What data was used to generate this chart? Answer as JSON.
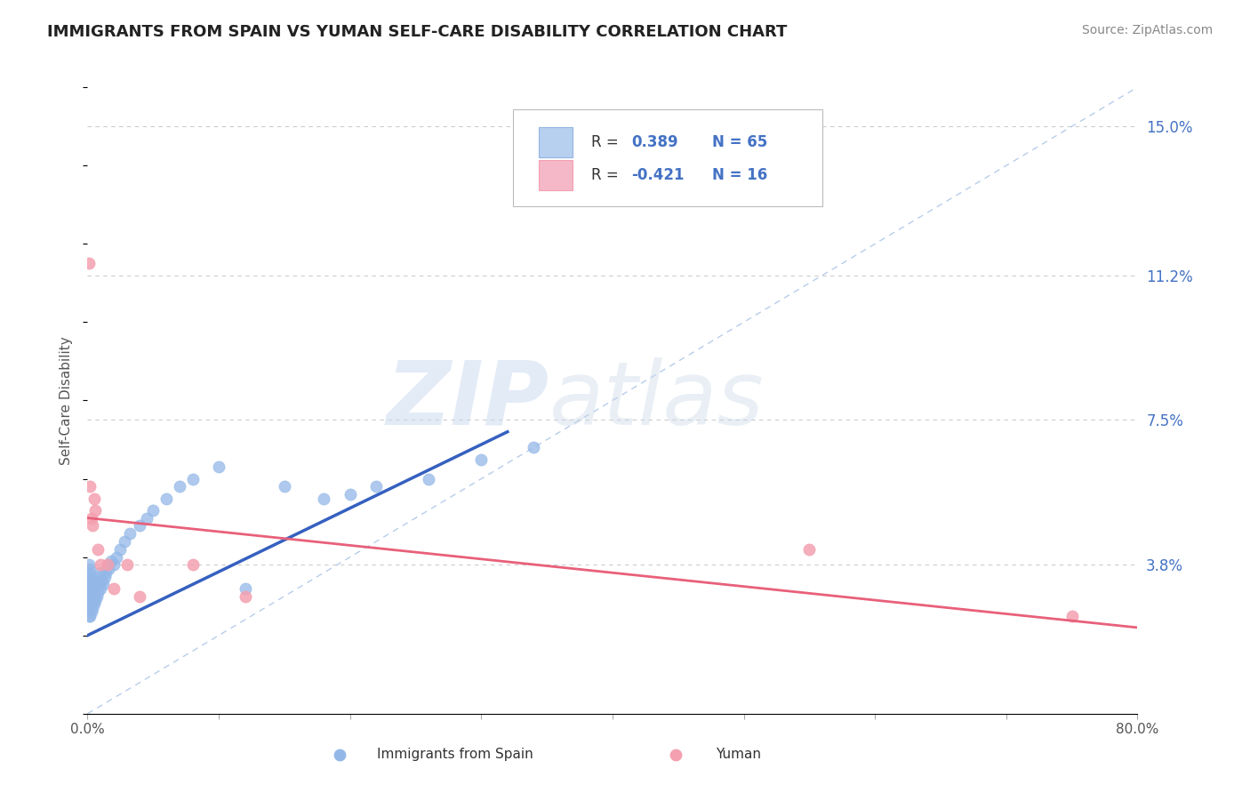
{
  "title": "IMMIGRANTS FROM SPAIN VS YUMAN SELF-CARE DISABILITY CORRELATION CHART",
  "source": "Source: ZipAtlas.com",
  "ylabel": "Self-Care Disability",
  "xlim": [
    0.0,
    0.8
  ],
  "ylim": [
    0.0,
    0.16
  ],
  "xticks": [
    0.0,
    0.1,
    0.2,
    0.3,
    0.4,
    0.5,
    0.6,
    0.7,
    0.8
  ],
  "xticklabels": [
    "0.0%",
    "",
    "",
    "",
    "",
    "",
    "",
    "",
    "80.0%"
  ],
  "yticks_right": [
    0.038,
    0.075,
    0.112,
    0.15
  ],
  "ytick_labels_right": [
    "3.8%",
    "7.5%",
    "11.2%",
    "15.0%"
  ],
  "color_blue": "#93b8e8",
  "color_pink": "#f4a0b0",
  "color_blue_text": "#4472c4",
  "color_trend_blue": "#3560c0",
  "color_trend_pink": "#e8607a",
  "color_diag": "#b0c8e8",
  "background_color": "#ffffff",
  "watermark_zip": "ZIP",
  "watermark_atlas": "atlas",
  "blue_x": [
    0.001,
    0.001,
    0.001,
    0.001,
    0.001,
    0.001,
    0.001,
    0.001,
    0.001,
    0.001,
    0.002,
    0.002,
    0.002,
    0.002,
    0.002,
    0.002,
    0.002,
    0.003,
    0.003,
    0.003,
    0.003,
    0.003,
    0.004,
    0.004,
    0.004,
    0.004,
    0.005,
    0.005,
    0.005,
    0.006,
    0.006,
    0.007,
    0.007,
    0.008,
    0.008,
    0.009,
    0.01,
    0.01,
    0.011,
    0.012,
    0.013,
    0.014,
    0.015,
    0.016,
    0.018,
    0.02,
    0.022,
    0.025,
    0.028,
    0.032,
    0.04,
    0.045,
    0.05,
    0.06,
    0.07,
    0.08,
    0.1,
    0.12,
    0.15,
    0.18,
    0.2,
    0.22,
    0.26,
    0.3,
    0.34
  ],
  "blue_y": [
    0.025,
    0.028,
    0.03,
    0.031,
    0.032,
    0.033,
    0.034,
    0.035,
    0.036,
    0.038,
    0.025,
    0.027,
    0.029,
    0.031,
    0.033,
    0.035,
    0.037,
    0.026,
    0.028,
    0.03,
    0.032,
    0.034,
    0.027,
    0.029,
    0.031,
    0.034,
    0.028,
    0.03,
    0.033,
    0.029,
    0.032,
    0.03,
    0.033,
    0.031,
    0.035,
    0.033,
    0.032,
    0.036,
    0.034,
    0.033,
    0.035,
    0.036,
    0.038,
    0.037,
    0.039,
    0.038,
    0.04,
    0.042,
    0.044,
    0.046,
    0.048,
    0.05,
    0.052,
    0.055,
    0.058,
    0.06,
    0.063,
    0.032,
    0.058,
    0.055,
    0.056,
    0.058,
    0.06,
    0.065,
    0.068
  ],
  "pink_x": [
    0.001,
    0.002,
    0.003,
    0.004,
    0.005,
    0.006,
    0.008,
    0.01,
    0.015,
    0.02,
    0.03,
    0.04,
    0.08,
    0.12,
    0.55,
    0.75
  ],
  "pink_y": [
    0.115,
    0.058,
    0.05,
    0.048,
    0.055,
    0.052,
    0.042,
    0.038,
    0.038,
    0.032,
    0.038,
    0.03,
    0.038,
    0.03,
    0.042,
    0.025
  ],
  "blue_trend_x0": 0.0,
  "blue_trend_x1": 0.32,
  "blue_trend_y0": 0.02,
  "blue_trend_y1": 0.072,
  "pink_trend_x0": 0.0,
  "pink_trend_x1": 0.8,
  "pink_trend_y0": 0.05,
  "pink_trend_y1": 0.022
}
